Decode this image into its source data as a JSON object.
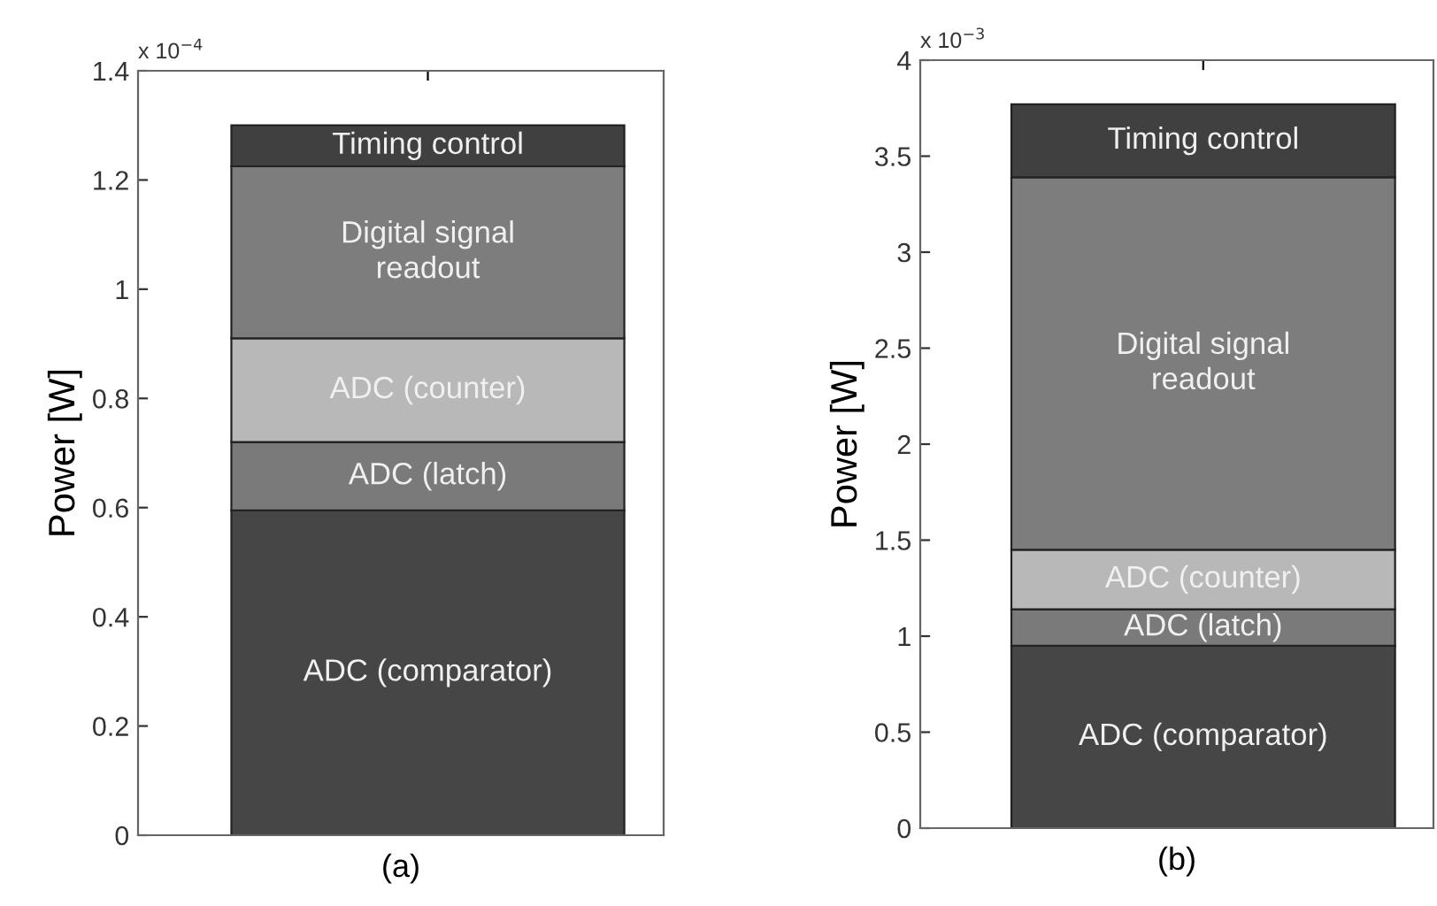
{
  "chart_data": [
    {
      "type": "bar",
      "stacked": true,
      "categories": [
        null
      ],
      "xlabel": "(a)",
      "ylabel": "Power [W]",
      "ylim": [
        0,
        1.4
      ],
      "yticks": [
        0,
        0.2,
        0.4,
        0.6,
        0.8,
        1,
        1.2,
        1.4
      ],
      "annotations": [
        "x 10$^{−4}$"
      ],
      "series": [
        {
          "name": "ADC (comparator)",
          "color": "#464646",
          "values": [
            0.595
          ]
        },
        {
          "name": "ADC (latch)",
          "color": "#7a7a7a",
          "values": [
            0.125
          ]
        },
        {
          "name": "ADC (counter)",
          "color": "#b8b8b8",
          "values": [
            0.19
          ]
        },
        {
          "name": "Digital signal\nreadout",
          "color": "#7d7d7d",
          "values": [
            0.315
          ]
        },
        {
          "name": "Timing control",
          "color": "#404040",
          "values": [
            0.075
          ]
        }
      ]
    },
    {
      "type": "bar",
      "stacked": true,
      "categories": [
        null
      ],
      "xlabel": "(b)",
      "ylabel": "Power [W]",
      "ylim": [
        0,
        4
      ],
      "yticks": [
        0,
        0.5,
        1,
        1.5,
        2,
        2.5,
        3,
        3.5,
        4
      ],
      "annotations": [
        "x 10$^{−3}$"
      ],
      "series": [
        {
          "name": "ADC (comparator)",
          "color": "#464646",
          "values": [
            0.95
          ]
        },
        {
          "name": "ADC (latch)",
          "color": "#7a7a7a",
          "values": [
            0.19
          ]
        },
        {
          "name": "ADC (counter)",
          "color": "#b8b8b8",
          "values": [
            0.31
          ]
        },
        {
          "name": "Digital signal\nreadout",
          "color": "#7d7d7d",
          "values": [
            1.94
          ]
        },
        {
          "name": "Timing control",
          "color": "#404040",
          "values": [
            0.38
          ]
        }
      ]
    }
  ]
}
